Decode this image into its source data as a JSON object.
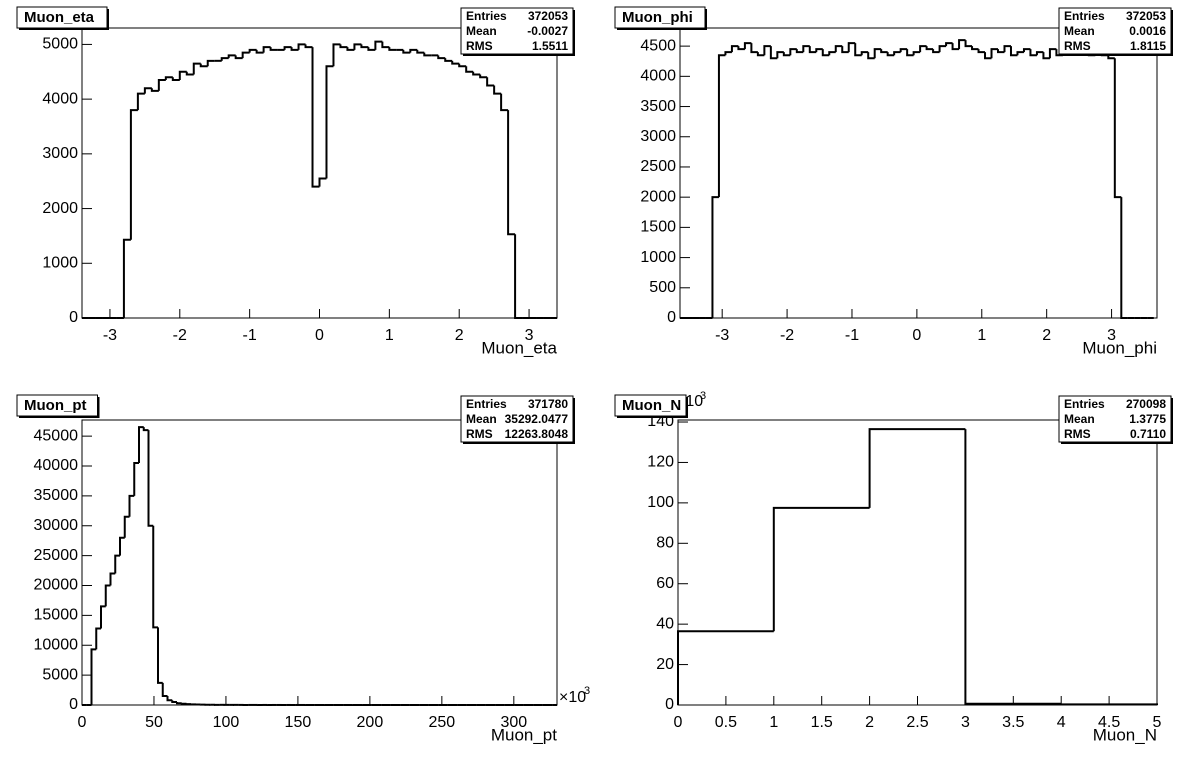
{
  "chart_data": [
    {
      "type": "histogram",
      "title": "Muon_eta",
      "xlabel": "Muon_eta",
      "color": "#000000",
      "xlim": [
        -3.4,
        3.4
      ],
      "ylim": [
        0,
        5300
      ],
      "xticks": [
        -3,
        -2,
        -1,
        0,
        1,
        2,
        3
      ],
      "yticks": [
        0,
        1000,
        2000,
        3000,
        4000,
        5000
      ],
      "bins": [
        -3.4,
        -3.3,
        -3.2,
        -3.1,
        -3,
        -2.9,
        -2.8,
        -2.7,
        -2.6,
        -2.5,
        -2.4,
        -2.3,
        -2.2,
        -2.1,
        -2,
        -1.9,
        -1.8,
        -1.7,
        -1.6,
        -1.5,
        -1.4,
        -1.3,
        -1.2,
        -1.1,
        -1,
        -0.9,
        -0.8,
        -0.7,
        -0.6,
        -0.5,
        -0.4,
        -0.3,
        -0.2,
        -0.1,
        0,
        0.1,
        0.2,
        0.3,
        0.4,
        0.5,
        0.6,
        0.7,
        0.8,
        0.9,
        1,
        1.1,
        1.2,
        1.3,
        1.4,
        1.5,
        1.6,
        1.7,
        1.8,
        1.9,
        2,
        2.1,
        2.2,
        2.3,
        2.4,
        2.5,
        2.6,
        2.7,
        2.8,
        2.9,
        3,
        3.1,
        3.2,
        3.3,
        3.4
      ],
      "values": [
        0,
        0,
        0,
        0,
        0,
        0,
        1430,
        3800,
        4100,
        4200,
        4150,
        4350,
        4400,
        4350,
        4500,
        4450,
        4650,
        4600,
        4700,
        4700,
        4750,
        4800,
        4750,
        4850,
        4900,
        4850,
        4950,
        4900,
        4900,
        4950,
        4900,
        5000,
        4950,
        2400,
        2550,
        4600,
        5000,
        4950,
        4900,
        5000,
        4950,
        4900,
        5050,
        4950,
        4900,
        4900,
        4850,
        4900,
        4850,
        4800,
        4800,
        4750,
        4700,
        4650,
        4600,
        4500,
        4450,
        4400,
        4250,
        4100,
        3800,
        1530,
        0,
        0,
        0,
        0,
        0,
        0
      ],
      "stats": [
        {
          "label": "Entries",
          "value": "372053"
        },
        {
          "label": "Mean",
          "value": "-0.0027"
        },
        {
          "label": "RMS",
          "value": "1.5511"
        }
      ]
    },
    {
      "type": "histogram",
      "title": "Muon_phi",
      "xlabel": "Muon_phi",
      "color": "#000000",
      "xlim": [
        -3.65,
        3.7
      ],
      "ylim": [
        0,
        4800
      ],
      "xticks": [
        -3,
        -2,
        -1,
        0,
        1,
        2,
        3
      ],
      "yticks": [
        0,
        500,
        1000,
        1500,
        2000,
        2500,
        3000,
        3500,
        4000,
        4500
      ],
      "bins": [
        -3.65,
        -3.55,
        -3.45,
        -3.35,
        -3.25,
        -3.15,
        -3.05,
        -2.95,
        -2.85,
        -2.75,
        -2.65,
        -2.55,
        -2.45,
        -2.35,
        -2.25,
        -2.15,
        -2.05,
        -1.95,
        -1.85,
        -1.75,
        -1.65,
        -1.55,
        -1.45,
        -1.35,
        -1.25,
        -1.15,
        -1.05,
        -0.95,
        -0.85,
        -0.75,
        -0.65,
        -0.55,
        -0.45,
        -0.35,
        -0.25,
        -0.15,
        -0.05,
        0.05,
        0.15,
        0.25,
        0.35,
        0.45,
        0.55,
        0.65,
        0.75,
        0.85,
        0.95,
        1.05,
        1.15,
        1.25,
        1.35,
        1.45,
        1.55,
        1.65,
        1.75,
        1.85,
        1.95,
        2.05,
        2.15,
        2.25,
        2.35,
        2.45,
        2.55,
        2.65,
        2.75,
        2.85,
        2.95,
        3.05,
        3.15,
        3.25,
        3.35,
        3.45,
        3.55,
        3.65
      ],
      "values": [
        0,
        0,
        0,
        0,
        0,
        2000,
        4350,
        4400,
        4500,
        4450,
        4550,
        4400,
        4350,
        4500,
        4300,
        4400,
        4350,
        4450,
        4400,
        4500,
        4400,
        4450,
        4350,
        4400,
        4500,
        4400,
        4550,
        4350,
        4400,
        4300,
        4450,
        4400,
        4350,
        4400,
        4450,
        4350,
        4400,
        4500,
        4450,
        4400,
        4500,
        4550,
        4450,
        4600,
        4500,
        4450,
        4400,
        4300,
        4450,
        4400,
        4500,
        4350,
        4400,
        4450,
        4350,
        4400,
        4300,
        4450,
        4350,
        4400,
        4550,
        4400,
        4450,
        4350,
        4400,
        4350,
        4300,
        2000,
        0,
        0,
        0,
        0,
        0
      ],
      "stats": [
        {
          "label": "Entries",
          "value": "372053"
        },
        {
          "label": "Mean",
          "value": "0.0016"
        },
        {
          "label": "RMS",
          "value": "1.8115"
        }
      ]
    },
    {
      "type": "histogram",
      "title": "Muon_pt",
      "xlabel": "Muon_pt",
      "color": "#000000",
      "xlim": [
        0,
        330
      ],
      "ylim": [
        0,
        47700
      ],
      "xticks": [
        0,
        50,
        100,
        150,
        200,
        250,
        300
      ],
      "yticks": [
        0,
        5000,
        10000,
        15000,
        20000,
        25000,
        30000,
        35000,
        40000,
        45000
      ],
      "x_multiplier": "×10",
      "x_multiplier_power": "3",
      "bins": [
        0,
        3.3,
        6.6,
        9.9,
        13.2,
        16.5,
        19.8,
        23.1,
        26.4,
        29.7,
        33,
        36.3,
        39.6,
        42.9,
        46.2,
        49.5,
        52.8,
        56.1,
        59.4,
        62.7,
        66,
        69.3,
        72.6,
        75.9,
        79.2,
        82.5,
        85.8,
        89.1,
        92.4,
        95.7,
        99,
        102.3,
        105.6,
        108.9,
        112.2,
        115.5,
        118.8,
        122.1,
        125.4,
        128.7,
        132,
        135.3,
        138.6,
        141.9,
        145.2,
        148.5,
        151.8,
        155.1,
        158.4,
        161.7,
        165,
        168.3,
        171.6,
        174.9,
        178.2,
        181.5,
        184.8,
        188.1,
        191.4,
        194.7,
        198,
        201.3,
        204.6,
        207.9,
        211.2,
        214.5,
        217.8,
        221.1,
        224.4,
        227.7,
        231,
        234.3,
        237.6,
        240.9,
        244.2,
        247.5,
        250.8,
        254.1,
        257.4,
        260.7,
        264,
        267.3,
        270.6,
        273.9,
        277.2,
        280.5,
        283.8,
        287.1,
        290.4,
        293.7,
        297,
        300.3,
        303.6,
        306.9,
        310.2,
        313.5,
        316.8,
        320.1,
        323.4,
        326.7,
        330
      ],
      "values": [
        0,
        0,
        9300,
        12800,
        16500,
        20000,
        22000,
        25000,
        28000,
        31500,
        35000,
        40500,
        46500,
        46000,
        30000,
        13000,
        3700,
        1500,
        800,
        500,
        300,
        200,
        150,
        100,
        80,
        60,
        50,
        40,
        30,
        30,
        20,
        20,
        15,
        15,
        10,
        10,
        10,
        8,
        8,
        5,
        5,
        5,
        4,
        4,
        3,
        3,
        3,
        2,
        2,
        2,
        2,
        1,
        1,
        1,
        1,
        1,
        1,
        0,
        1,
        0,
        0,
        0,
        0,
        0,
        0,
        0,
        0,
        0,
        0,
        0,
        0,
        0,
        0,
        0,
        0,
        0,
        0,
        0,
        0,
        0,
        0,
        0,
        0,
        0,
        0,
        0,
        0,
        0,
        0,
        0,
        0,
        0,
        0,
        0,
        0,
        0,
        0,
        0,
        0,
        0
      ],
      "stats": [
        {
          "label": "Entries",
          "value": "371780"
        },
        {
          "label": "Mean",
          "value": "35292.0477"
        },
        {
          "label": "RMS",
          "value": "12263.8048"
        }
      ]
    },
    {
      "type": "histogram",
      "title": "Muon_N",
      "xlabel": "Muon_N",
      "color": "#000000",
      "xlim": [
        0,
        5
      ],
      "ylim": [
        0,
        141
      ],
      "xticks": [
        0,
        0.5,
        1,
        1.5,
        2,
        2.5,
        3,
        3.5,
        4,
        4.5,
        5
      ],
      "yticks": [
        0,
        20,
        40,
        60,
        80,
        100,
        120,
        140
      ],
      "y_multiplier": "×10",
      "y_multiplier_power": "3",
      "bins": [
        0,
        1,
        2,
        3,
        4,
        5
      ],
      "values": [
        36.5,
        97.5,
        136.5,
        0.6,
        0.3
      ],
      "stats": [
        {
          "label": "Entries",
          "value": "270098"
        },
        {
          "label": "Mean",
          "value": "1.3775"
        },
        {
          "label": "RMS",
          "value": "0.7110"
        }
      ]
    }
  ]
}
